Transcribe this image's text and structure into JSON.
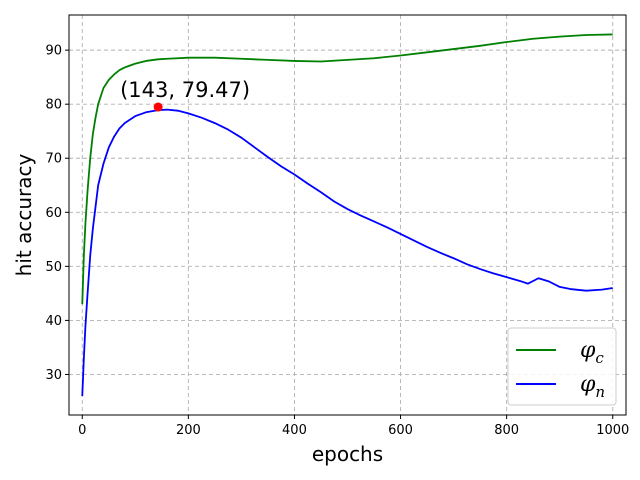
{
  "chart_data": {
    "type": "line",
    "xlabel": "epochs",
    "ylabel": "hit accuracy",
    "xlim": [
      -25,
      1025
    ],
    "ylim": [
      22.5,
      96.5
    ],
    "xticks": [
      0,
      200,
      400,
      600,
      800,
      1000
    ],
    "yticks": [
      30,
      40,
      50,
      60,
      70,
      80,
      90
    ],
    "grid": true,
    "legend": "lower-right",
    "series": [
      {
        "name": "φ",
        "subscript": "c",
        "color": "#008000",
        "x": [
          0,
          3,
          6,
          10,
          15,
          20,
          25,
          30,
          40,
          50,
          60,
          70,
          80,
          100,
          120,
          143,
          160,
          180,
          200,
          250,
          300,
          350,
          400,
          450,
          500,
          550,
          600,
          650,
          700,
          750,
          800,
          850,
          900,
          950,
          1000
        ],
        "y": [
          43,
          52,
          58,
          64,
          70,
          74.5,
          77.5,
          80,
          83,
          84.5,
          85.5,
          86.3,
          86.8,
          87.5,
          88,
          88.3,
          88.4,
          88.5,
          88.6,
          88.6,
          88.4,
          88.2,
          88.0,
          87.9,
          88.2,
          88.5,
          89.0,
          89.6,
          90.2,
          90.8,
          91.5,
          92.1,
          92.5,
          92.8,
          92.9
        ]
      },
      {
        "name": "φ",
        "subscript": "n",
        "color": "#0000ff",
        "x": [
          0,
          3,
          6,
          10,
          15,
          20,
          25,
          30,
          40,
          50,
          60,
          70,
          80,
          100,
          120,
          143,
          160,
          180,
          200,
          225,
          250,
          275,
          300,
          325,
          350,
          375,
          400,
          425,
          450,
          475,
          500,
          525,
          550,
          575,
          600,
          625,
          650,
          675,
          700,
          725,
          750,
          775,
          800,
          825,
          840,
          860,
          880,
          900,
          920,
          950,
          980,
          1000
        ],
        "y": [
          26,
          33,
          39,
          45,
          52,
          57,
          61,
          65,
          69,
          72,
          74,
          75.5,
          76.5,
          77.8,
          78.5,
          78.9,
          79,
          78.8,
          78.3,
          77.5,
          76.5,
          75.3,
          73.8,
          72,
          70.2,
          68.5,
          67,
          65.3,
          63.7,
          62,
          60.6,
          59.4,
          58.3,
          57.2,
          56,
          54.8,
          53.6,
          52.5,
          51.5,
          50.4,
          49.5,
          48.7,
          48.0,
          47.3,
          46.8,
          47.8,
          47.2,
          46.2,
          45.8,
          45.5,
          45.7,
          46.0
        ]
      }
    ],
    "annotation": {
      "label": "(143, 79.47)",
      "x": 143,
      "y": 79.47,
      "marker_color": "#ff0000"
    }
  }
}
